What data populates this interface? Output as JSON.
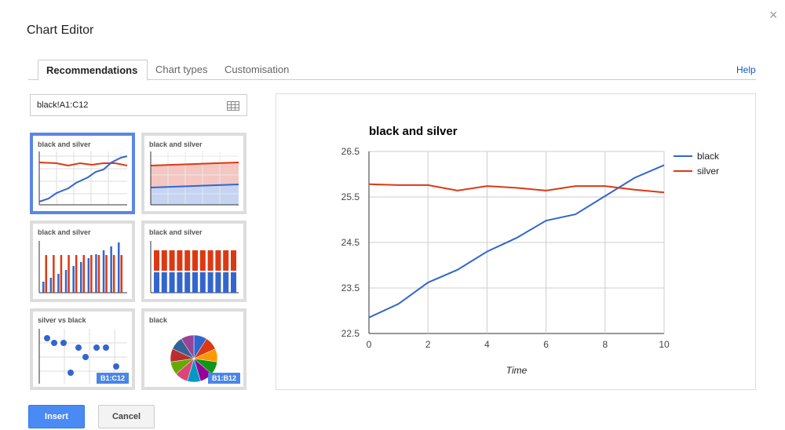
{
  "dialog": {
    "title": "Chart Editor",
    "close_glyph": "×"
  },
  "tabs": [
    {
      "label": "Recommendations",
      "active": true
    },
    {
      "label": "Chart types",
      "active": false
    },
    {
      "label": "Customisation",
      "active": false
    }
  ],
  "help_label": "Help",
  "range": {
    "value": "black!A1:C12",
    "icon": "grid-icon"
  },
  "thumbnails": [
    {
      "title": "black and silver",
      "kind": "line",
      "selected": true
    },
    {
      "title": "black and silver",
      "kind": "area",
      "selected": false
    },
    {
      "title": "black and silver",
      "kind": "column",
      "selected": false
    },
    {
      "title": "black and silver",
      "kind": "stacked-column",
      "selected": false
    },
    {
      "title": "silver vs black",
      "kind": "scatter",
      "selected": false,
      "badge": "B1:C12"
    },
    {
      "title": "black",
      "kind": "pie",
      "selected": false,
      "badge": "B1:B12"
    }
  ],
  "buttons": {
    "insert": "Insert",
    "cancel": "Cancel"
  },
  "colors": {
    "accent": "#4a8af4",
    "black_series": "#3366cc",
    "silver_series": "#dc3912",
    "selected_border": "#5b86e5"
  },
  "chart_data": {
    "type": "line",
    "title": "black and silver",
    "xlabel": "Time",
    "ylabel": "",
    "x": [
      0,
      1,
      2,
      3,
      4,
      5,
      6,
      7,
      8,
      9,
      10
    ],
    "xticks": [
      "0",
      "2",
      "4",
      "6",
      "8",
      "10"
    ],
    "yticks": [
      "22.5",
      "23.5",
      "24.5",
      "25.5",
      "26.5"
    ],
    "xlim": [
      0,
      10
    ],
    "ylim": [
      22.5,
      26.5
    ],
    "grid": true,
    "legend_position": "right",
    "series": [
      {
        "name": "black",
        "color": "#3366cc",
        "values": [
          22.85,
          23.15,
          23.62,
          23.9,
          24.3,
          24.6,
          24.98,
          25.12,
          25.52,
          25.92,
          26.2
        ]
      },
      {
        "name": "silver",
        "color": "#dc3912",
        "values": [
          25.78,
          25.76,
          25.76,
          25.64,
          25.74,
          25.7,
          25.64,
          25.74,
          25.74,
          25.66,
          25.6
        ]
      }
    ]
  }
}
